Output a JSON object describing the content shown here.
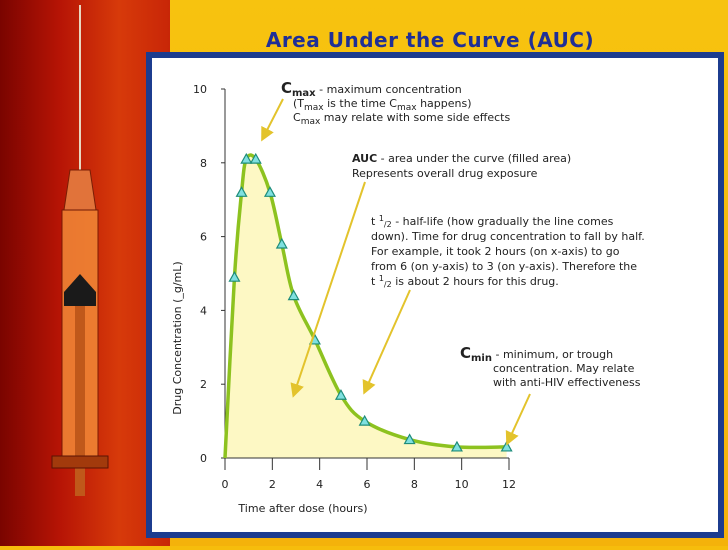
{
  "slide": {
    "title": "Area Under the Curve (AUC)"
  },
  "chart_data": {
    "type": "area",
    "xlabel": "Time after dose (hours)",
    "ylabel": "Drug Concentration (_g/mL)",
    "xlim": [
      0,
      12
    ],
    "ylim": [
      0,
      10
    ],
    "x_ticks": [
      "0",
      "2",
      "4",
      "6",
      "8",
      "10",
      "12"
    ],
    "y_ticks": [
      "0",
      "2",
      "4",
      "6",
      "8",
      "10"
    ],
    "series": [
      {
        "x": [
          0.4,
          0.7,
          0.9,
          1.3,
          1.9,
          2.4,
          2.9,
          3.8,
          4.9,
          5.9,
          7.8,
          9.8,
          11.9
        ],
        "y": [
          4.9,
          7.2,
          8.1,
          8.1,
          7.2,
          5.8,
          4.4,
          3.2,
          1.7,
          1.0,
          0.5,
          0.3,
          0.3
        ]
      }
    ],
    "colors": {
      "curve": "#8DC21F",
      "fill": "#FDF8C4",
      "marker_fill": "#7FE0E0",
      "marker_stroke": "#1E8C7A",
      "arrow": "#E3C32C"
    },
    "annotations": {
      "cmax": {
        "symbol": "C",
        "sub": "max",
        "line1": " - maximum concentration",
        "line2_pre": "(T",
        "line2_sub": "max",
        "line2_mid": " is the time C",
        "line2_sub2": "max",
        "line2_post": " happens)",
        "line3_pre": "C",
        "line3_sub": "max",
        "line3_post": " may relate with some side effects"
      },
      "auc": {
        "bold": "AUC",
        "line1": " - area under the curve (filled area)",
        "line2": "Represents overall drug exposure"
      },
      "half_life": {
        "pre": "t ",
        "sup": "1",
        "sub": "/2",
        "line1": " - half-life (how gradually the line comes",
        "line2": "down). Time for drug concentration to fall by half.",
        "line3": "For example, it took 2 hours (on x-axis) to go",
        "line4": "from 6 (on y-axis) to 3 (on y-axis).  Therefore the",
        "line5_pre": "t ",
        "line5_sup": "1",
        "line5_sub": "/2",
        "line5_post": " is about 2 hours for this drug."
      },
      "cmin": {
        "symbol": "C",
        "sub": "min",
        "line1": " - minimum, or trough",
        "line2": "concentration. May relate",
        "line3": "with anti-HIV effectiveness"
      }
    }
  }
}
